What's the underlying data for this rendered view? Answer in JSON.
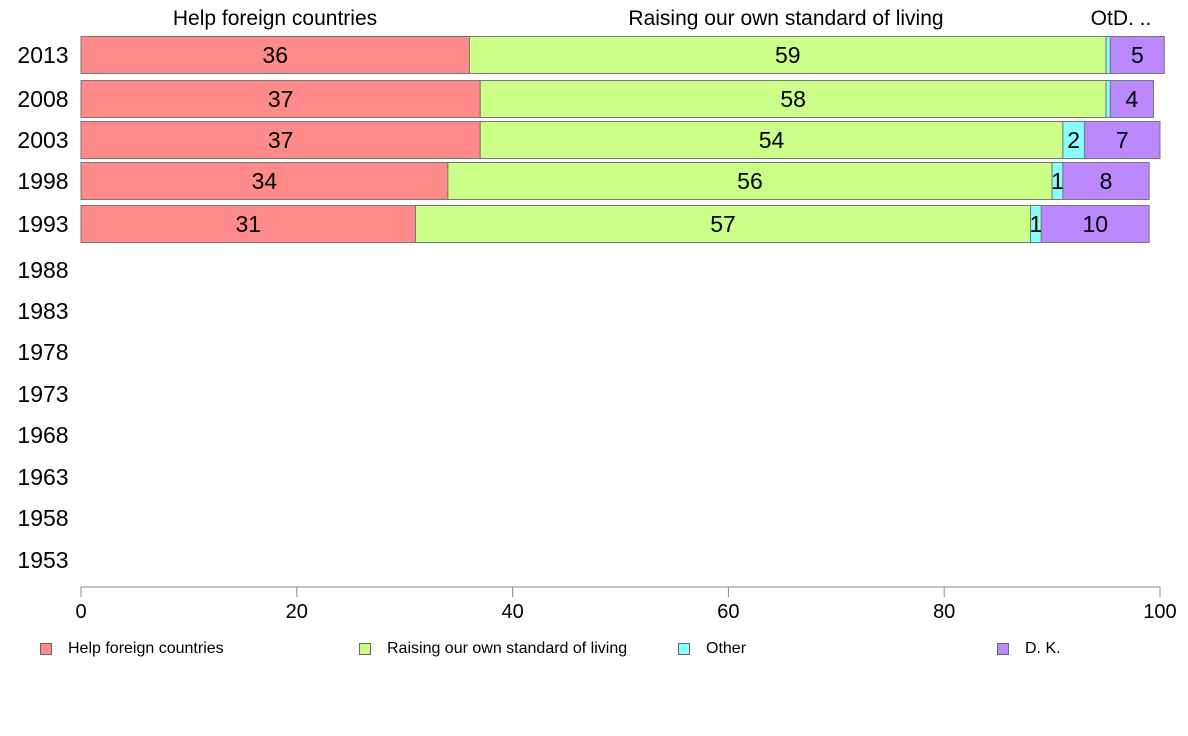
{
  "chart_data": {
    "type": "bar",
    "orientation": "horizontal",
    "stacked": true,
    "categories": [
      "2013",
      "2008",
      "2003",
      "1998",
      "1993",
      "1988",
      "1983",
      "1978",
      "1973",
      "1968",
      "1963",
      "1958",
      "1953"
    ],
    "series": [
      {
        "name": "Help foreign countries",
        "color": "#ff8a8a",
        "values": [
          36,
          37,
          37,
          34,
          31,
          null,
          null,
          null,
          null,
          null,
          null,
          null,
          null
        ]
      },
      {
        "name": "Raising our own standard of living",
        "color": "#ccff88",
        "values": [
          59,
          58,
          54,
          56,
          57,
          null,
          null,
          null,
          null,
          null,
          null,
          null,
          null
        ]
      },
      {
        "name": "Other",
        "color": "#88ffff",
        "values": [
          0.4,
          0.4,
          2,
          1,
          1,
          null,
          null,
          null,
          null,
          null,
          null,
          null,
          null
        ]
      },
      {
        "name": "D. K.",
        "color": "#bb88ff",
        "values": [
          5,
          4,
          7,
          8,
          10,
          null,
          null,
          null,
          null,
          null,
          null,
          null,
          null
        ]
      }
    ],
    "data_labels": [
      [
        "36",
        "59",
        "",
        "5"
      ],
      [
        "37",
        "58",
        "",
        "4"
      ],
      [
        "37",
        "54",
        "2",
        "7"
      ],
      [
        "34",
        "56",
        "1",
        "8"
      ],
      [
        "31",
        "57",
        "1",
        "10"
      ]
    ],
    "top_labels": [
      "Help foreign countries",
      "Raising our own standard of living",
      "OtD. .."
    ],
    "x_ticks": [
      0,
      20,
      40,
      60,
      80,
      100
    ],
    "xlim": [
      0,
      100
    ],
    "xlabel": "",
    "ylabel": "",
    "grid": false,
    "legend_position": "bottom"
  }
}
